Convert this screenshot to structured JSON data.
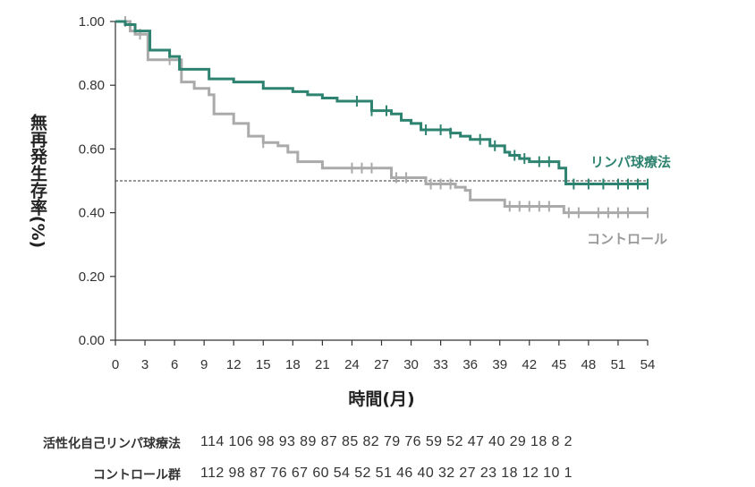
{
  "chart_data": {
    "type": "line",
    "subtype": "kaplan-meier",
    "ylabel": "無再発生存率(%)",
    "xlabel": "時間(月)",
    "xlim": [
      0,
      54
    ],
    "ylim": [
      0,
      1
    ],
    "x_ticks": [
      "0",
      "3",
      "6",
      "9",
      "12",
      "15",
      "18",
      "21",
      "24",
      "27",
      "30",
      "33",
      "36",
      "39",
      "42",
      "45",
      "48",
      "51",
      "54"
    ],
    "y_ticks": [
      "0.00",
      "0.20",
      "0.40",
      "0.60",
      "0.80",
      "1.00"
    ],
    "reference_line": 0.5,
    "grid": false,
    "series": [
      {
        "name": "リンパ球療法",
        "color": "#2e8370",
        "steps": [
          [
            0,
            1.0
          ],
          [
            1,
            0.99
          ],
          [
            2,
            0.97
          ],
          [
            3.5,
            0.91
          ],
          [
            5.5,
            0.89
          ],
          [
            6.5,
            0.85
          ],
          [
            9.5,
            0.82
          ],
          [
            12,
            0.81
          ],
          [
            15,
            0.79
          ],
          [
            18,
            0.78
          ],
          [
            19.5,
            0.77
          ],
          [
            21,
            0.76
          ],
          [
            22.5,
            0.75
          ],
          [
            26,
            0.72
          ],
          [
            27,
            0.72
          ],
          [
            28,
            0.71
          ],
          [
            29,
            0.69
          ],
          [
            30,
            0.68
          ],
          [
            31,
            0.66
          ],
          [
            34,
            0.65
          ],
          [
            35,
            0.64
          ],
          [
            36,
            0.63
          ],
          [
            38,
            0.61
          ],
          [
            39.5,
            0.59
          ],
          [
            40,
            0.58
          ],
          [
            41,
            0.57
          ],
          [
            42,
            0.56
          ],
          [
            44,
            0.56
          ],
          [
            45,
            0.54
          ],
          [
            45.7,
            0.49
          ],
          [
            54,
            0.49
          ]
        ],
        "censor": [
          24.5,
          26,
          27.5,
          31.5,
          33,
          34,
          37,
          38.5,
          40.5,
          41.5,
          43,
          44,
          46.5,
          48,
          49.5,
          51,
          52,
          53,
          54
        ]
      },
      {
        "name": "コントロール",
        "color": "#aaaaaa",
        "steps": [
          [
            0,
            1.0
          ],
          [
            1.5,
            0.97
          ],
          [
            2,
            0.96
          ],
          [
            3.3,
            0.88
          ],
          [
            6,
            0.88
          ],
          [
            6.7,
            0.81
          ],
          [
            8,
            0.79
          ],
          [
            9.5,
            0.77
          ],
          [
            10,
            0.71
          ],
          [
            12,
            0.68
          ],
          [
            13.5,
            0.64
          ],
          [
            15,
            0.62
          ],
          [
            16.5,
            0.61
          ],
          [
            17.5,
            0.59
          ],
          [
            18.5,
            0.56
          ],
          [
            21,
            0.54
          ],
          [
            26,
            0.54
          ],
          [
            28,
            0.51
          ],
          [
            31,
            0.51
          ],
          [
            31.5,
            0.49
          ],
          [
            34,
            0.49
          ],
          [
            34.5,
            0.48
          ],
          [
            35.5,
            0.47
          ],
          [
            36,
            0.44
          ],
          [
            39.5,
            0.42
          ],
          [
            45,
            0.42
          ],
          [
            45.5,
            0.4
          ],
          [
            54,
            0.4
          ]
        ],
        "censor": [
          1,
          2.5,
          5.5,
          15,
          24,
          25,
          26,
          28.5,
          29.5,
          32,
          33,
          34,
          40,
          41,
          42,
          43,
          44,
          46,
          47,
          49,
          50,
          51,
          52,
          54
        ]
      }
    ],
    "risk_table": {
      "rows": [
        {
          "label": "活性化自己リンパ球療法",
          "values": "114 106 98 93 89 87 85 82 79 76 59 52 47 40 29 18 8 2"
        },
        {
          "label": "コントロール群",
          "values": "112 98 87 76 67 60 54 52 51 46 40 32 27 23 18 12 10 1"
        }
      ]
    }
  }
}
